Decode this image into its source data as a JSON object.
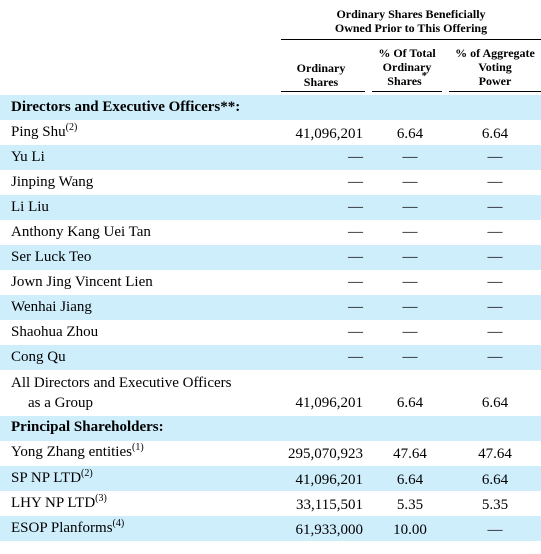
{
  "header": {
    "group_line1": "Ordinary Shares Beneficially",
    "group_line2": "Owned Prior to This Offering",
    "col1_line1": "Ordinary",
    "col1_line2": "Shares",
    "col2_line1": "% Of Total",
    "col2_line2": "Ordinary",
    "col2_line3": "Shares",
    "col2_sup": "*",
    "col3_line1": "% of Aggregate",
    "col3_line2": "Voting",
    "col3_line3": "Power"
  },
  "sections": {
    "directors_heading": "Directors and Executive Officers**:",
    "principal_heading": "Principal Shareholders:"
  },
  "directors": [
    {
      "name": "Ping Shu",
      "note": "(2)",
      "shares": "41,096,201",
      "pct_total": "6.64",
      "pct_voting": "6.64"
    },
    {
      "name": "Yu Li",
      "note": "",
      "shares": "—",
      "pct_total": "—",
      "pct_voting": "—"
    },
    {
      "name": "Jinping Wang",
      "note": "",
      "shares": "—",
      "pct_total": "—",
      "pct_voting": "—"
    },
    {
      "name": "Li Liu",
      "note": "",
      "shares": "—",
      "pct_total": "—",
      "pct_voting": "—"
    },
    {
      "name": "Anthony Kang Uei Tan",
      "note": "",
      "shares": "—",
      "pct_total": "—",
      "pct_voting": "—"
    },
    {
      "name": "Ser Luck Teo",
      "note": "",
      "shares": "—",
      "pct_total": "—",
      "pct_voting": "—"
    },
    {
      "name": "Jown Jing Vincent Lien",
      "note": "",
      "shares": "—",
      "pct_total": "—",
      "pct_voting": "—"
    },
    {
      "name": "Wenhai Jiang",
      "note": "",
      "shares": "—",
      "pct_total": "—",
      "pct_voting": "—"
    },
    {
      "name": "Shaohua Zhou",
      "note": "",
      "shares": "—",
      "pct_total": "—",
      "pct_voting": "—"
    },
    {
      "name": "Cong Qu",
      "note": "",
      "shares": "—",
      "pct_total": "—",
      "pct_voting": "—"
    }
  ],
  "group_row": {
    "name_line1": "All Directors and Executive Officers",
    "name_line2": "as a Group",
    "shares": "41,096,201",
    "pct_total": "6.64",
    "pct_voting": "6.64"
  },
  "principals": [
    {
      "name": "Yong Zhang entities",
      "note": "(1)",
      "shares": "295,070,923",
      "pct_total": "47.64",
      "pct_voting": "47.64"
    },
    {
      "name": "SP NP LTD",
      "note": "(2)",
      "shares": "41,096,201",
      "pct_total": "6.64",
      "pct_voting": "6.64"
    },
    {
      "name": "LHY NP LTD",
      "note": "(3)",
      "shares": "33,115,501",
      "pct_total": "5.35",
      "pct_voting": "5.35"
    },
    {
      "name": "ESOP Planforms",
      "note": "(4)",
      "shares": "61,933,000",
      "pct_total": "10.00",
      "pct_voting": "—"
    }
  ],
  "colors": {
    "stripe": "#cfeefc",
    "rule": "#000000"
  }
}
